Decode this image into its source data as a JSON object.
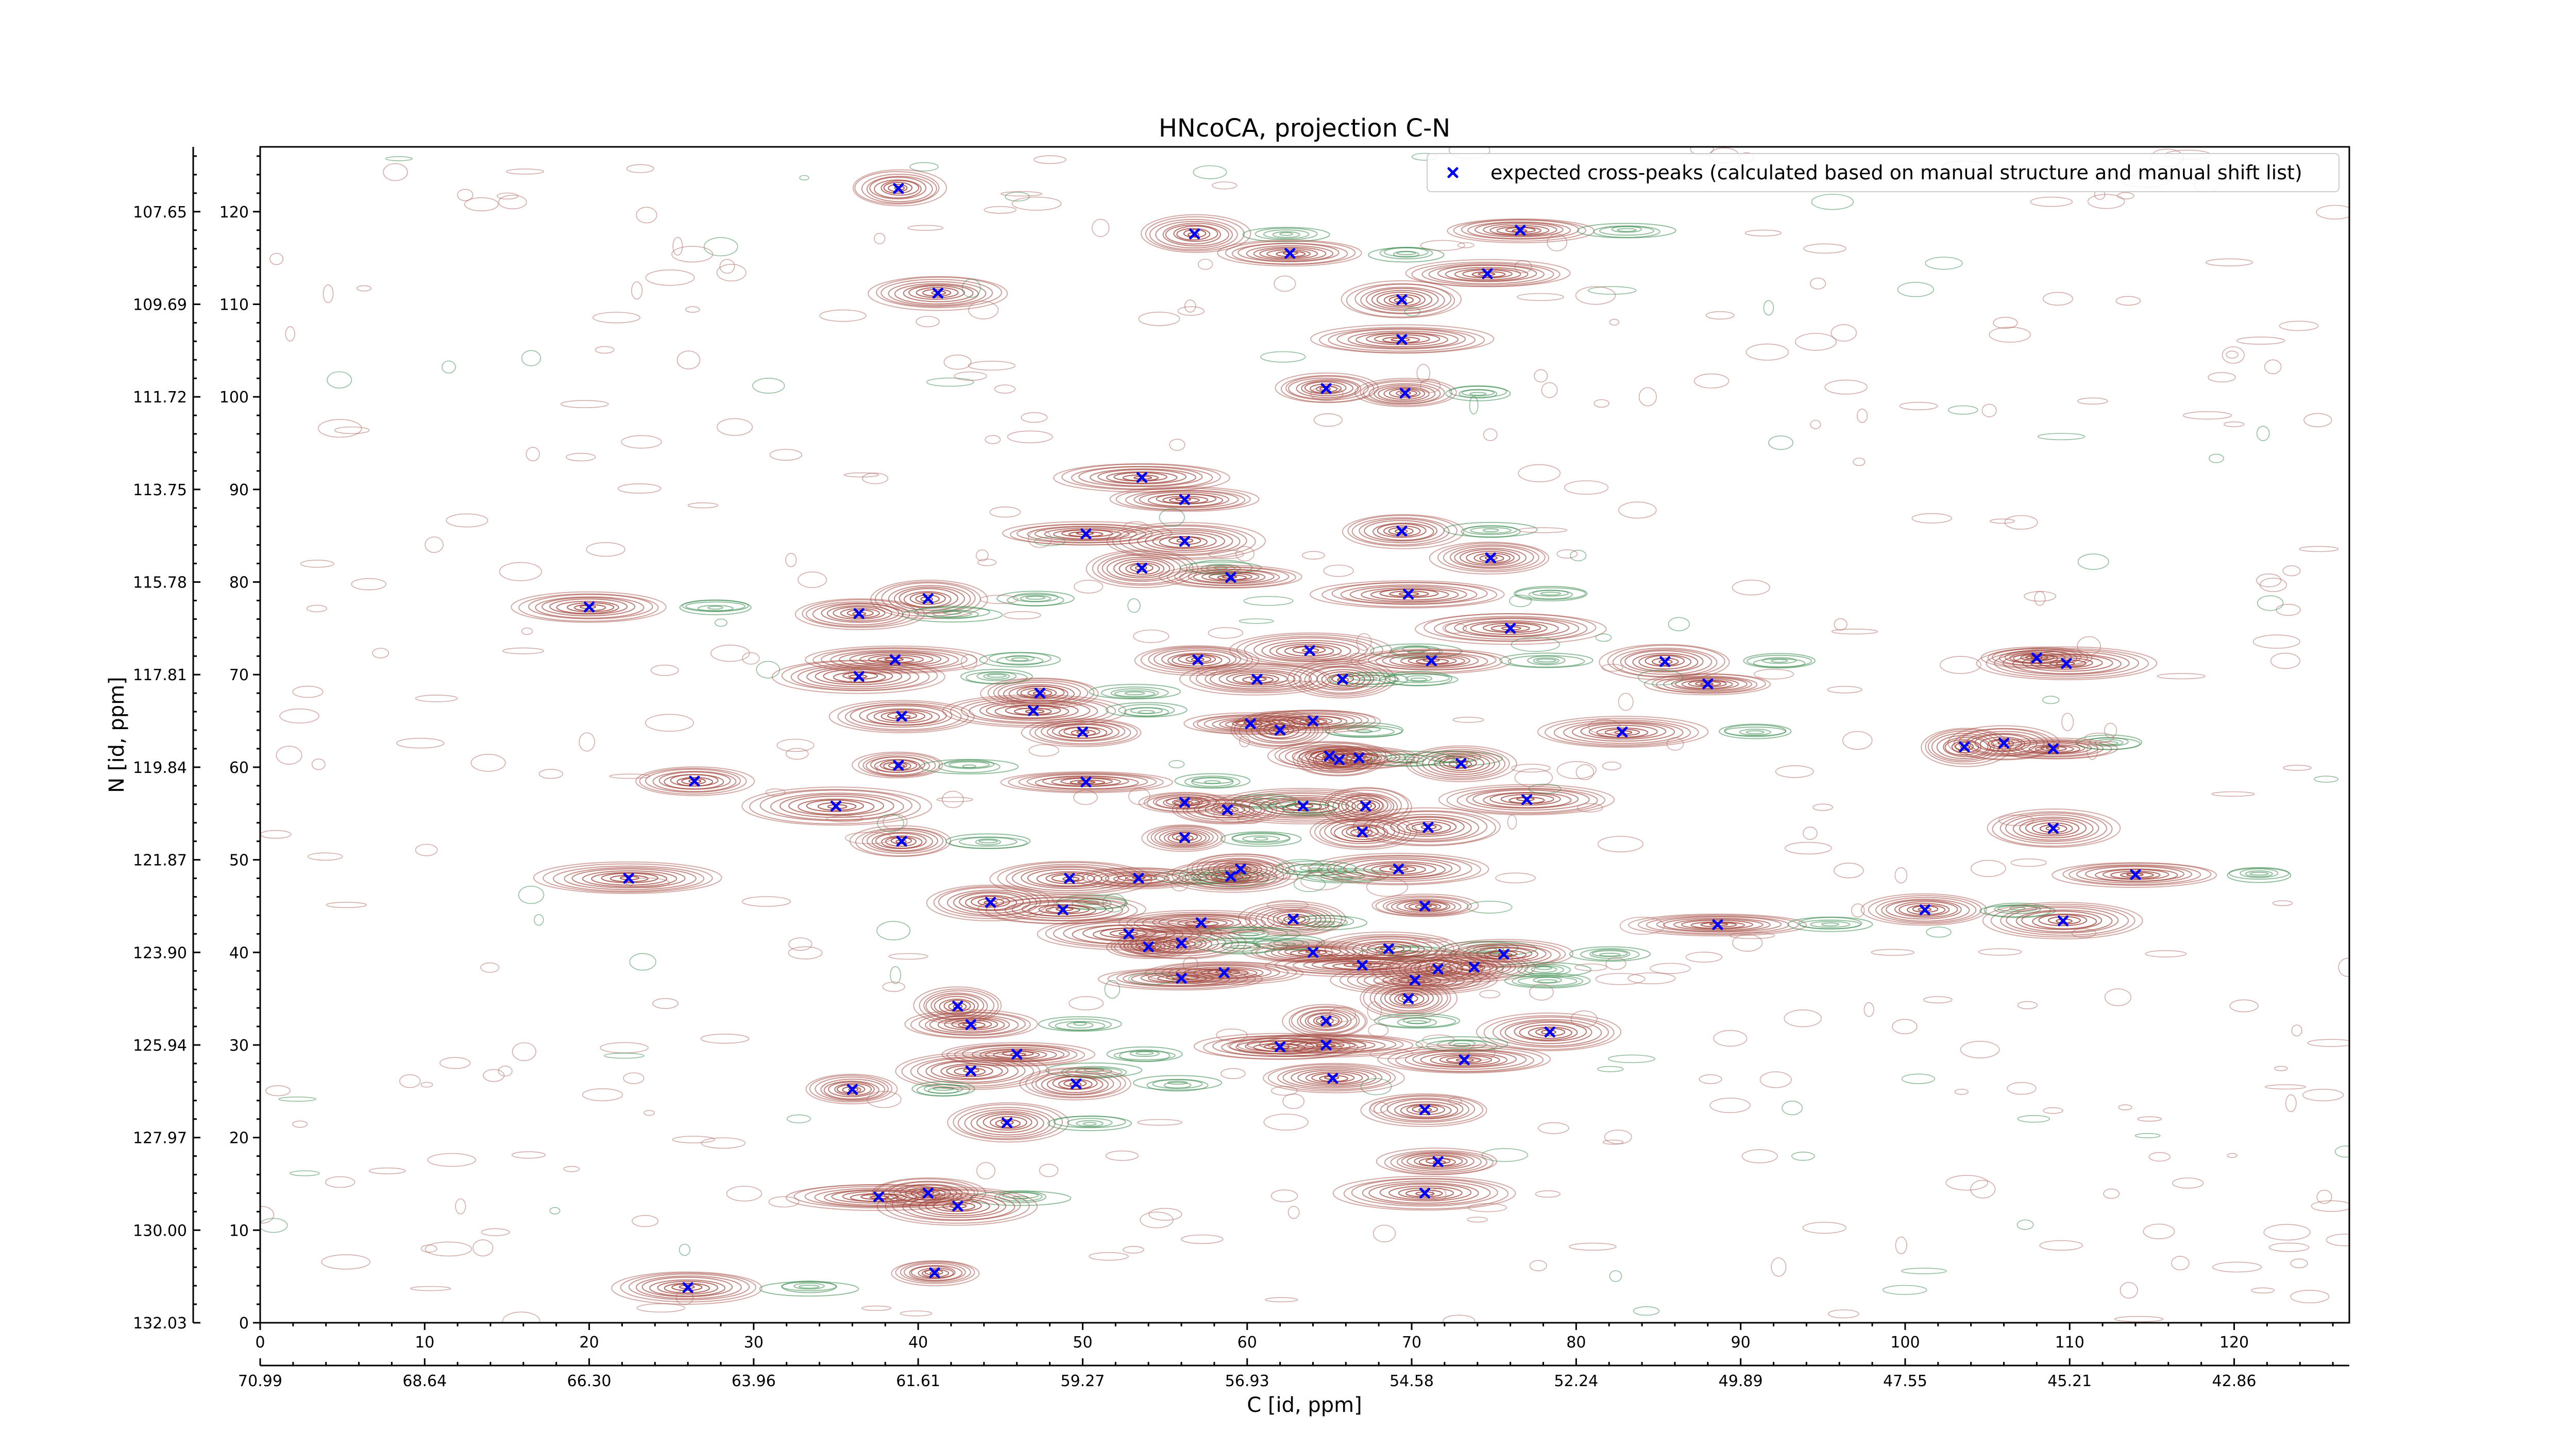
{
  "chart_data": {
    "type": "scatter",
    "title": "HNcoCA, projection C-N",
    "xlabel": "C [id, ppm]",
    "ylabel": "N [id, ppm]",
    "xlim": [
      0,
      127
    ],
    "ylim": [
      0,
      127
    ],
    "x_index_ticks": [
      "0",
      "10",
      "20",
      "30",
      "40",
      "50",
      "60",
      "70",
      "80",
      "90",
      "100",
      "110",
      "120"
    ],
    "x_ppm_ticks": [
      "70.99",
      "68.64",
      "66.30",
      "63.96",
      "61.61",
      "59.27",
      "56.93",
      "54.58",
      "52.24",
      "49.89",
      "47.55",
      "45.21",
      "42.86"
    ],
    "y_index_ticks": [
      "0",
      "10",
      "20",
      "30",
      "40",
      "50",
      "60",
      "70",
      "80",
      "90",
      "100",
      "110",
      "120"
    ],
    "y_ppm_ticks": [
      "132.03",
      "130.00",
      "127.97",
      "125.94",
      "123.90",
      "121.87",
      "119.84",
      "117.81",
      "115.78",
      "113.75",
      "111.72",
      "109.69",
      "107.65"
    ],
    "legend": {
      "placement": "top-right",
      "label": "expected cross-peaks (calculated based on manual structure and manual shift list)"
    },
    "series": [
      {
        "label": "expected cross-peaks",
        "color": "#0000ff",
        "marker": "x",
        "points": [
          [
            38.8,
            122.5
          ],
          [
            56.8,
            117.6
          ],
          [
            76.6,
            118.0
          ],
          [
            62.6,
            115.5
          ],
          [
            74.6,
            113.3
          ],
          [
            41.2,
            111.2
          ],
          [
            69.4,
            110.5
          ],
          [
            69.4,
            106.2
          ],
          [
            64.8,
            100.9
          ],
          [
            69.6,
            100.4
          ],
          [
            53.6,
            91.3
          ],
          [
            56.2,
            88.9
          ],
          [
            50.2,
            85.2
          ],
          [
            56.2,
            84.4
          ],
          [
            69.4,
            85.5
          ],
          [
            74.8,
            82.6
          ],
          [
            53.6,
            81.5
          ],
          [
            59.0,
            80.5
          ],
          [
            40.6,
            78.2
          ],
          [
            20.0,
            77.3
          ],
          [
            36.4,
            76.6
          ],
          [
            69.8,
            78.7
          ],
          [
            76.0,
            75.0
          ],
          [
            38.6,
            71.6
          ],
          [
            57.0,
            71.6
          ],
          [
            63.8,
            72.6
          ],
          [
            71.2,
            71.5
          ],
          [
            85.4,
            71.4
          ],
          [
            36.4,
            69.8
          ],
          [
            60.6,
            69.5
          ],
          [
            65.8,
            69.5
          ],
          [
            88.0,
            69.0
          ],
          [
            108.0,
            71.8
          ],
          [
            109.8,
            71.2
          ],
          [
            47.4,
            68.0
          ],
          [
            47.0,
            66.1
          ],
          [
            39.0,
            65.5
          ],
          [
            60.2,
            64.7
          ],
          [
            62.0,
            64.0
          ],
          [
            64.0,
            65.0
          ],
          [
            50.0,
            63.8
          ],
          [
            82.8,
            63.8
          ],
          [
            103.6,
            62.2
          ],
          [
            106.0,
            62.6
          ],
          [
            109.0,
            62.0
          ],
          [
            65.0,
            61.2
          ],
          [
            65.6,
            60.8
          ],
          [
            66.8,
            61.0
          ],
          [
            73.0,
            60.4
          ],
          [
            38.8,
            60.2
          ],
          [
            26.4,
            58.5
          ],
          [
            50.2,
            58.4
          ],
          [
            77.0,
            56.5
          ],
          [
            35.0,
            55.8
          ],
          [
            56.2,
            56.2
          ],
          [
            58.8,
            55.4
          ],
          [
            63.4,
            55.8
          ],
          [
            67.2,
            55.8
          ],
          [
            71.0,
            53.5
          ],
          [
            109.0,
            53.4
          ],
          [
            56.2,
            52.4
          ],
          [
            67.0,
            53.0
          ],
          [
            39.0,
            52.0
          ],
          [
            22.4,
            48.0
          ],
          [
            49.2,
            48.0
          ],
          [
            53.4,
            48.0
          ],
          [
            59.0,
            48.2
          ],
          [
            59.6,
            49.0
          ],
          [
            69.2,
            49.0
          ],
          [
            114.0,
            48.4
          ],
          [
            44.4,
            45.4
          ],
          [
            48.8,
            44.6
          ],
          [
            70.8,
            45.0
          ],
          [
            101.2,
            44.6
          ],
          [
            57.2,
            43.2
          ],
          [
            62.8,
            43.6
          ],
          [
            88.6,
            43.0
          ],
          [
            109.6,
            43.4
          ],
          [
            52.8,
            42.0
          ],
          [
            54.0,
            40.6
          ],
          [
            56.0,
            41.0
          ],
          [
            64.0,
            40.0
          ],
          [
            68.6,
            40.4
          ],
          [
            75.6,
            39.8
          ],
          [
            56.0,
            37.2
          ],
          [
            58.6,
            37.8
          ],
          [
            67.0,
            38.6
          ],
          [
            71.6,
            38.2
          ],
          [
            73.8,
            38.4
          ],
          [
            70.2,
            37.0
          ],
          [
            69.8,
            35.0
          ],
          [
            42.4,
            34.2
          ],
          [
            43.2,
            32.2
          ],
          [
            64.8,
            32.6
          ],
          [
            78.4,
            31.4
          ],
          [
            62.0,
            29.8
          ],
          [
            64.8,
            30.0
          ],
          [
            46.0,
            29.0
          ],
          [
            73.2,
            28.4
          ],
          [
            43.2,
            27.2
          ],
          [
            36.0,
            25.2
          ],
          [
            49.6,
            25.8
          ],
          [
            65.2,
            26.4
          ],
          [
            45.4,
            21.6
          ],
          [
            70.8,
            23.0
          ],
          [
            71.6,
            17.4
          ],
          [
            40.6,
            14.0
          ],
          [
            37.6,
            13.6
          ],
          [
            42.4,
            12.6
          ],
          [
            70.8,
            14.0
          ],
          [
            26.0,
            3.8
          ],
          [
            41.0,
            5.4
          ]
        ]
      }
    ]
  }
}
